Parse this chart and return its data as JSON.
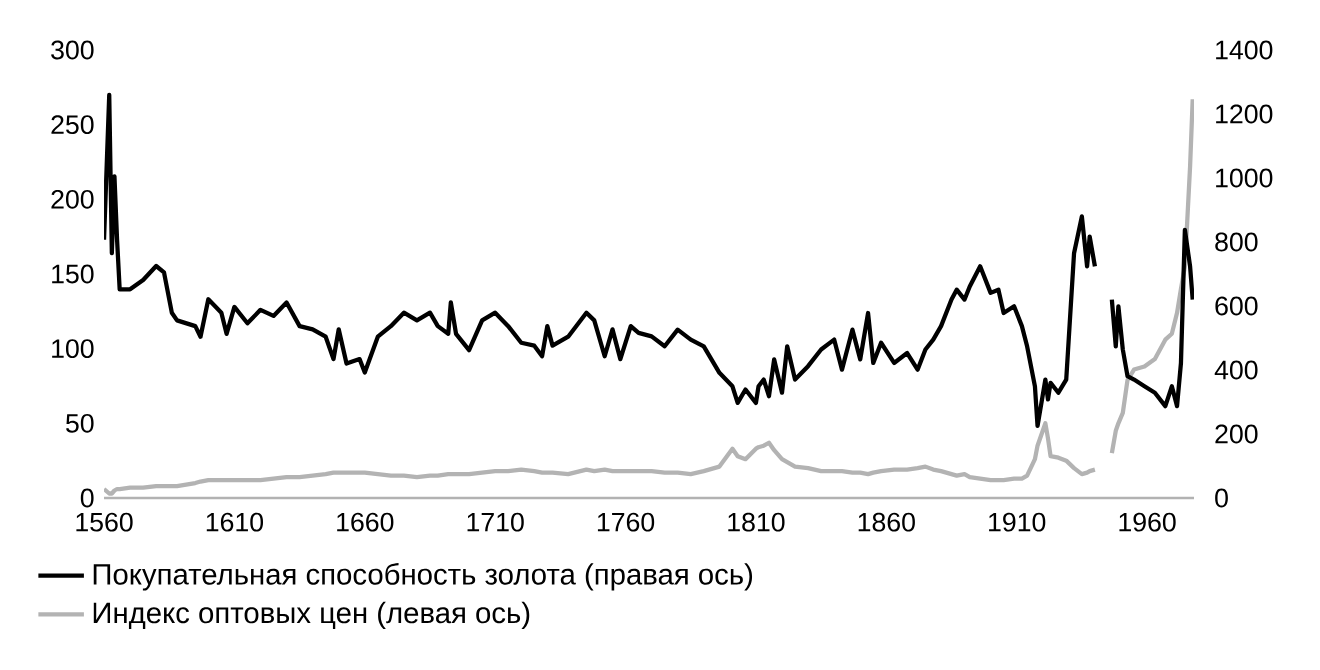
{
  "chart_data": {
    "type": "line",
    "x": [
      1560,
      1562,
      1563,
      1564,
      1565,
      1566,
      1570,
      1575,
      1580,
      1583,
      1586,
      1588,
      1595,
      1597,
      1600,
      1605,
      1607,
      1610,
      1615,
      1620,
      1625,
      1630,
      1635,
      1640,
      1645,
      1648,
      1650,
      1653,
      1658,
      1660,
      1665,
      1670,
      1675,
      1680,
      1685,
      1688,
      1692,
      1693,
      1695,
      1700,
      1705,
      1710,
      1715,
      1720,
      1725,
      1728,
      1730,
      1732,
      1738,
      1745,
      1748,
      1752,
      1755,
      1758,
      1762,
      1765,
      1770,
      1775,
      1780,
      1785,
      1790,
      1796,
      1801,
      1803,
      1806,
      1810,
      1811,
      1813,
      1815,
      1817,
      1820,
      1822,
      1825,
      1830,
      1835,
      1840,
      1843,
      1847,
      1850,
      1853,
      1855,
      1858,
      1863,
      1868,
      1872,
      1875,
      1878,
      1881,
      1885,
      1887,
      1890,
      1892,
      1896,
      1900,
      1903,
      1905,
      1909,
      1912,
      1914,
      1917,
      1918,
      1921,
      1922,
      1923,
      1926,
      1929,
      1932,
      1935,
      1937,
      1938,
      1940,
      1943,
      1946.5,
      1948,
      1949,
      1950.7,
      1952.5,
      1955,
      1959,
      1963,
      1967,
      1969.5,
      1971.5,
      1973,
      1974.5,
      1976.5,
      1977.5
    ],
    "series": [
      {
        "name": "Покупательная способность золота (правая ось)",
        "color": "#000000",
        "axis": "y2",
        "values": [
          807,
          1260,
          765,
          1005,
          807,
          652,
          652,
          681,
          725,
          705,
          579,
          555,
          537,
          504,
          621,
          579,
          513,
          597,
          546,
          588,
          569,
          611,
          537,
          527,
          504,
          434,
          527,
          420,
          434,
          392,
          504,
          537,
          579,
          555,
          579,
          537,
          513,
          611,
          513,
          462,
          555,
          579,
          537,
          485,
          476,
          443,
          537,
          476,
          504,
          579,
          555,
          443,
          527,
          434,
          537,
          516,
          505,
          474,
          526,
          495,
          474,
          391,
          349,
          297,
          339,
          297,
          349,
          370,
          318,
          433,
          329,
          474,
          370,
          412,
          464,
          495,
          401,
          526,
          433,
          578,
          422,
          485,
          422,
          453,
          401,
          464,
          495,
          537,
          620,
          651,
          620,
          661,
          724,
          641,
          651,
          578,
          599,
          537,
          474,
          349,
          225,
          370,
          308,
          360,
          329,
          370,
          765,
          880,
          724,
          817,
          724,
          null,
          620,
          474,
          599,
          464,
          381,
          370,
          349,
          329,
          287,
          349,
          287,
          422,
          838,
          724,
          620
        ]
      },
      {
        "name": "Индекс оптовых цен (левая ось)",
        "color": "#b3b3b3",
        "axis": "y",
        "values": [
          6,
          3,
          3,
          5,
          6,
          6,
          7,
          7,
          8,
          8,
          8,
          8,
          10,
          11,
          12,
          12,
          12,
          12,
          12,
          12,
          13,
          14,
          14,
          15,
          16,
          17,
          17,
          17,
          17,
          17,
          16,
          15,
          15,
          14,
          15,
          15,
          16,
          16,
          16,
          16,
          17,
          18,
          18,
          19,
          18,
          17,
          17,
          17,
          16,
          19,
          18,
          19,
          18,
          18,
          18,
          18,
          18,
          17,
          17,
          16,
          18,
          21,
          33,
          28,
          26,
          33,
          34,
          35,
          37,
          32,
          26,
          24,
          21,
          20,
          18,
          18,
          18,
          17,
          17,
          16,
          17,
          18,
          19,
          19,
          20,
          21,
          19,
          18,
          16,
          15,
          16,
          14,
          13,
          12,
          12,
          12,
          13,
          13,
          15,
          26,
          35,
          50,
          40,
          28,
          27,
          25,
          20,
          16,
          17,
          18,
          19,
          null,
          30,
          45,
          50,
          57,
          79,
          86,
          88,
          93,
          106,
          110,
          124,
          140,
          155,
          222,
          267
        ]
      }
    ],
    "xlim": [
      1560,
      1978
    ],
    "xticks": [
      1560,
      1610,
      1660,
      1710,
      1760,
      1810,
      1860,
      1910,
      1960
    ],
    "ylim": [
      0,
      300
    ],
    "yticks": [
      0,
      50,
      100,
      150,
      200,
      250,
      300
    ],
    "y2lim": [
      0,
      1400
    ],
    "y2ticks": [
      0,
      200,
      400,
      600,
      800,
      1000,
      1200,
      1400
    ],
    "grid": false,
    "legend": "bottom",
    "line_style": "solid",
    "marker": "none"
  }
}
